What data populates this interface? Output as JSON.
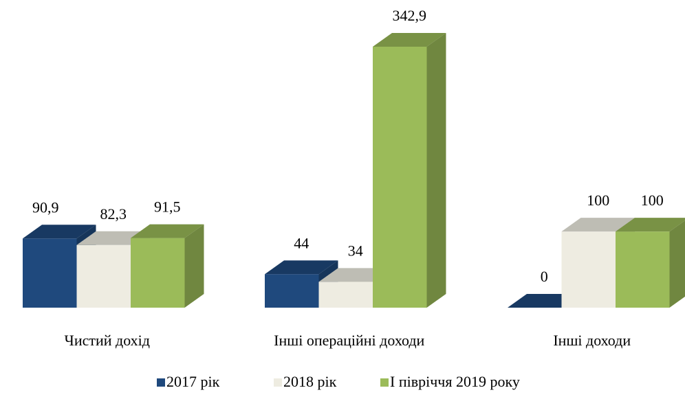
{
  "chart_data": {
    "type": "bar3d",
    "categories": [
      "Чистий дохід",
      "Інші операційні доходи",
      "Інші доходи"
    ],
    "series": [
      {
        "name": "2017 рік",
        "color": "#1f497d",
        "values": [
          90.9,
          44,
          0
        ],
        "value_labels": [
          "90,9",
          "44",
          "0"
        ]
      },
      {
        "name": "2018 рік",
        "color": "#eeece1",
        "values": [
          82.3,
          34,
          100
        ],
        "value_labels": [
          "82,3",
          "34",
          "100"
        ]
      },
      {
        "name": "І півріччя 2019 року",
        "color": "#9bbb59",
        "values": [
          91.5,
          342.9,
          100
        ],
        "value_labels": [
          "91,5",
          "342,9",
          "100"
        ]
      }
    ],
    "legend": "bottom"
  }
}
